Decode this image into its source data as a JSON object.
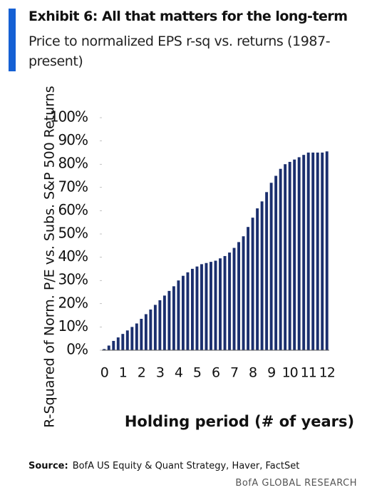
{
  "chart_data": {
    "type": "bar",
    "title": "Exhibit 6: All that matters for the long-term",
    "subtitle": "Price to normalized EPS r-sq vs. returns (1987-present)",
    "y_label": "R-Squared of Norm. P/E vs. Subs. S&P 500 Returns",
    "x_label": "Holding period (# of years)",
    "source_label": "Source:",
    "source": "BofA US Equity & Quant Strategy, Haver, FactSet",
    "footer": "BofA GLOBAL RESEARCH",
    "color": "#1b2f6e",
    "categories": [
      "0",
      null,
      null,
      null,
      "1",
      null,
      null,
      null,
      "2",
      null,
      null,
      null,
      "3",
      null,
      null,
      null,
      "4",
      null,
      null,
      null,
      "5",
      null,
      null,
      null,
      "6",
      null,
      null,
      null,
      "7",
      null,
      null,
      null,
      "8",
      null,
      null,
      null,
      "9",
      null,
      null,
      null,
      "10",
      null,
      null,
      null,
      "11",
      null,
      null,
      null,
      "12"
    ],
    "values": [
      0.5,
      2,
      4,
      5.5,
      7,
      8.5,
      10,
      11.5,
      13.5,
      15.5,
      17.5,
      19.5,
      21.5,
      23.5,
      25.5,
      27.5,
      30,
      32,
      33.5,
      35,
      36,
      37,
      37.5,
      38,
      38.5,
      39.5,
      40.5,
      42,
      44,
      46.5,
      49,
      53,
      57,
      61,
      64,
      68,
      72,
      75,
      78,
      80,
      81,
      82,
      83,
      84,
      85,
      85,
      85,
      85,
      85.5
    ],
    "ylim": [
      0,
      100
    ],
    "yticks": [
      {
        "value": 0,
        "label": "0%"
      },
      {
        "value": 10,
        "label": "10%"
      },
      {
        "value": 20,
        "label": "20%"
      },
      {
        "value": 30,
        "label": "30%"
      },
      {
        "value": 40,
        "label": "40%"
      },
      {
        "value": 50,
        "label": "50%"
      },
      {
        "value": 60,
        "label": "60%"
      },
      {
        "value": 70,
        "label": "70%"
      },
      {
        "value": 80,
        "label": "80%"
      },
      {
        "value": 90,
        "label": "90%"
      },
      {
        "value": 100,
        "label": "100%"
      }
    ]
  }
}
